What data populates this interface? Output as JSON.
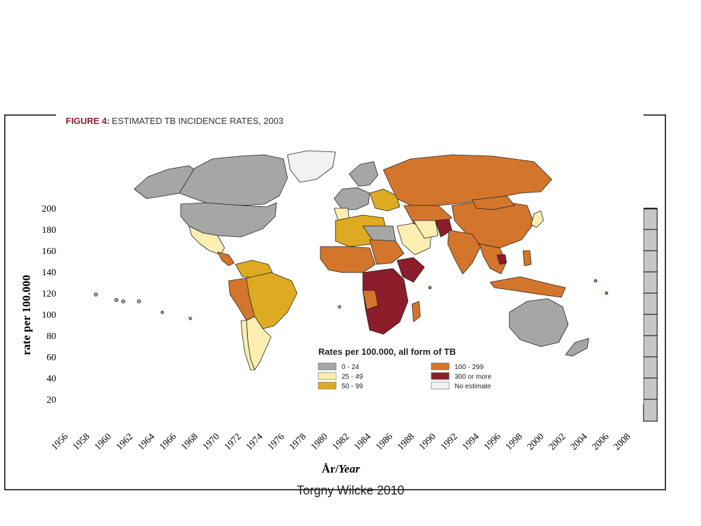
{
  "footer": {
    "text": "Torgny Wilcke 2010"
  },
  "map": {
    "figure_label": "FIGURE 4:",
    "figure_title": "ESTIMATED TB INCIDENCE RATES, 2003",
    "legend": {
      "title": "Rates per 100.000, all form of TB",
      "items": [
        {
          "label": "0 - 24",
          "color": "#a6a6a6"
        },
        {
          "label": "25 - 49",
          "color": "#fbeeb0"
        },
        {
          "label": "50 - 99",
          "color": "#deaa22"
        },
        {
          "label": "100 - 299",
          "color": "#d4752c"
        },
        {
          "label": "300 or more",
          "color": "#8c1d2b"
        },
        {
          "label": "No estimate",
          "color": "#f2f2f2"
        }
      ]
    }
  },
  "chart": {
    "ylabel": "rate per 100.000",
    "xlabel_main": "År/",
    "xlabel_italic": "Year",
    "y_ticks": [
      20,
      40,
      60,
      80,
      100,
      120,
      140,
      160,
      180,
      200
    ],
    "x_ticks": [
      "1956",
      "1958",
      "1960",
      "1962",
      "1964",
      "1966",
      "1968",
      "1970",
      "1972",
      "1974",
      "1976",
      "1978",
      "1980",
      "1982",
      "1984",
      "1986",
      "1988",
      "1990",
      "1992",
      "1994",
      "1996",
      "1998",
      "2000",
      "2002",
      "2004",
      "2006",
      "2008"
    ]
  },
  "colors": {
    "low": "#a6a6a6",
    "mid_low": "#fbeeb0",
    "mid": "#deaa22",
    "high": "#d4752c",
    "very_high": "#8c1d2b",
    "none": "#f2f2f2"
  }
}
